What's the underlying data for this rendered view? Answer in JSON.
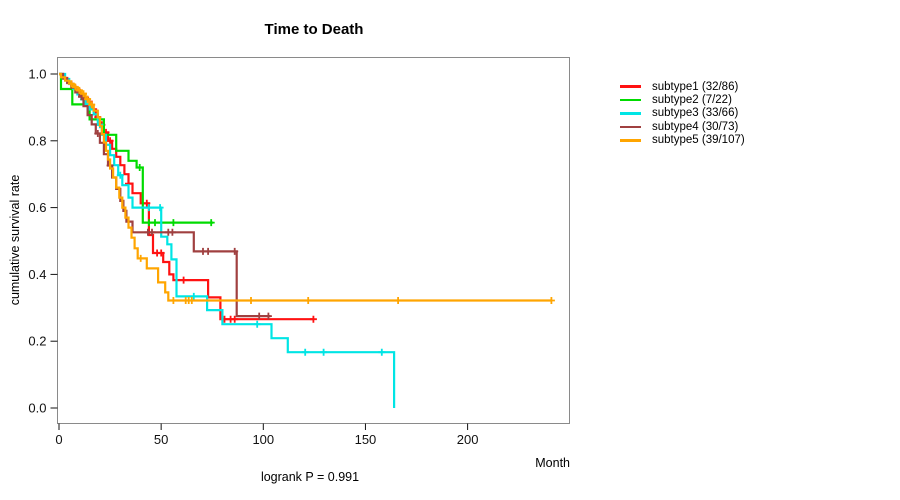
{
  "chart_data": {
    "type": "line",
    "variant": "kaplan-meier-step",
    "title": "Time to Death",
    "xlabel": "Month",
    "ylabel": "cumulative survival rate",
    "annotation": "logrank P = 0.991",
    "x_ticks": [
      0,
      50,
      100,
      150,
      200
    ],
    "y_ticks": [
      1.0,
      0.8,
      0.6,
      0.4,
      0.2,
      0.0
    ],
    "xlim": [
      0,
      250
    ],
    "ylim": [
      0.0,
      1.0
    ],
    "grid": false,
    "legend_position": "right",
    "series": [
      {
        "name": "subtype1",
        "label": "subtype1 (32/86)",
        "color": "#ff1212",
        "end_month": 125,
        "steps": [
          [
            0,
            1.0
          ],
          [
            2,
            0.988
          ],
          [
            4,
            0.977
          ],
          [
            6,
            0.965
          ],
          [
            8,
            0.953
          ],
          [
            10,
            0.941
          ],
          [
            12,
            0.929
          ],
          [
            14,
            0.917
          ],
          [
            16,
            0.894
          ],
          [
            18,
            0.871
          ],
          [
            20,
            0.848
          ],
          [
            22,
            0.825
          ],
          [
            24,
            0.8
          ],
          [
            26,
            0.776
          ],
          [
            28,
            0.752
          ],
          [
            30,
            0.727
          ],
          [
            32,
            0.7
          ],
          [
            34,
            0.672
          ],
          [
            36,
            0.643
          ],
          [
            40,
            0.613
          ],
          [
            44,
            0.518
          ],
          [
            46,
            0.464
          ],
          [
            51,
            0.437
          ],
          [
            54,
            0.4
          ],
          [
            56,
            0.383
          ],
          [
            73,
            0.331
          ],
          [
            79,
            0.266
          ]
        ],
        "censors": [
          9,
          13,
          17,
          19,
          21,
          23,
          25,
          34,
          43,
          48,
          50,
          61,
          81,
          84,
          86,
          124.5
        ]
      },
      {
        "name": "subtype2",
        "label": "subtype2 (7/22)",
        "color": "#00db00",
        "end_month": 75.5,
        "steps": [
          [
            0,
            1.0
          ],
          [
            1,
            0.955
          ],
          [
            6.5,
            0.909
          ],
          [
            15,
            0.864
          ],
          [
            22,
            0.818
          ],
          [
            28,
            0.77
          ],
          [
            34,
            0.74
          ],
          [
            38,
            0.72
          ],
          [
            41,
            0.555
          ]
        ],
        "censors": [
          39.5,
          44,
          47,
          56,
          74.5
        ]
      },
      {
        "name": "subtype3",
        "label": "subtype3 (33/66)",
        "color": "#00e5e5",
        "end_month": 164,
        "steps": [
          [
            0,
            1.0
          ],
          [
            3,
            0.985
          ],
          [
            5,
            0.97
          ],
          [
            7,
            0.955
          ],
          [
            9,
            0.939
          ],
          [
            11,
            0.924
          ],
          [
            13,
            0.909
          ],
          [
            15,
            0.894
          ],
          [
            17,
            0.879
          ],
          [
            19,
            0.848
          ],
          [
            21,
            0.818
          ],
          [
            23,
            0.788
          ],
          [
            25,
            0.757
          ],
          [
            27,
            0.727
          ],
          [
            29,
            0.697
          ],
          [
            31,
            0.667
          ],
          [
            34,
            0.63
          ],
          [
            36,
            0.6
          ],
          [
            50,
            0.513
          ],
          [
            53,
            0.49
          ],
          [
            55,
            0.445
          ],
          [
            57.5,
            0.334
          ],
          [
            72.5,
            0.293
          ],
          [
            80,
            0.251
          ],
          [
            104,
            0.209
          ],
          [
            112,
            0.167
          ],
          [
            164,
            0.0
          ]
        ],
        "censors": [
          12,
          20,
          30,
          44,
          49.5,
          66,
          97,
          120.5,
          129.5,
          158
        ]
      },
      {
        "name": "subtype4",
        "label": "subtype4 (30/73)",
        "color": "#a04040",
        "end_month": 103.5,
        "steps": [
          [
            0,
            1.0
          ],
          [
            2,
            0.986
          ],
          [
            4,
            0.973
          ],
          [
            6,
            0.959
          ],
          [
            8,
            0.945
          ],
          [
            10,
            0.932
          ],
          [
            12,
            0.904
          ],
          [
            14,
            0.877
          ],
          [
            16,
            0.849
          ],
          [
            18,
            0.822
          ],
          [
            20,
            0.794
          ],
          [
            22,
            0.76
          ],
          [
            24,
            0.726
          ],
          [
            26,
            0.69
          ],
          [
            28,
            0.656
          ],
          [
            30,
            0.62
          ],
          [
            31.5,
            0.59
          ],
          [
            33,
            0.558
          ],
          [
            36,
            0.526
          ],
          [
            66,
            0.469
          ],
          [
            87,
            0.275
          ]
        ],
        "censors": [
          11,
          19,
          25,
          43.5,
          45.5,
          53.5,
          55.5,
          70.5,
          73,
          86,
          98,
          102.5
        ]
      },
      {
        "name": "subtype5",
        "label": "subtype5 (39/107)",
        "color": "#ffa500",
        "end_month": 241,
        "steps": [
          [
            0,
            1.0
          ],
          [
            1,
            0.99
          ],
          [
            3,
            0.98
          ],
          [
            5,
            0.971
          ],
          [
            7,
            0.961
          ],
          [
            9,
            0.951
          ],
          [
            11,
            0.941
          ],
          [
            13,
            0.925
          ],
          [
            15,
            0.908
          ],
          [
            17,
            0.89
          ],
          [
            19,
            0.87
          ],
          [
            20,
            0.845
          ],
          [
            21,
            0.82
          ],
          [
            22,
            0.795
          ],
          [
            23,
            0.77
          ],
          [
            24,
            0.744
          ],
          [
            25,
            0.717
          ],
          [
            26.5,
            0.69
          ],
          [
            28,
            0.66
          ],
          [
            29.5,
            0.63
          ],
          [
            31,
            0.6
          ],
          [
            32.5,
            0.57
          ],
          [
            34,
            0.54
          ],
          [
            35.5,
            0.51
          ],
          [
            37,
            0.478
          ],
          [
            38.5,
            0.448
          ],
          [
            43,
            0.418
          ],
          [
            48.5,
            0.376
          ],
          [
            52,
            0.346
          ],
          [
            53.5,
            0.322
          ]
        ],
        "censors": [
          6,
          8,
          10,
          12,
          14,
          16,
          40,
          56,
          62,
          63.5,
          65,
          94,
          122,
          166,
          241
        ]
      }
    ]
  }
}
